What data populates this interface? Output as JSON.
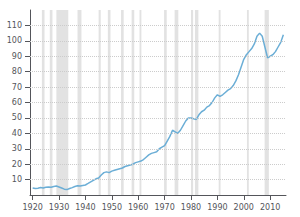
{
  "chart_data": {
    "type": "line",
    "x": [
      1920,
      1921,
      1922,
      1923,
      1924,
      1925,
      1926,
      1927,
      1928,
      1929,
      1930,
      1931,
      1932,
      1933,
      1934,
      1935,
      1936,
      1937,
      1938,
      1939,
      1940,
      1941,
      1942,
      1943,
      1944,
      1945,
      1946,
      1947,
      1948,
      1949,
      1950,
      1951,
      1952,
      1953,
      1954,
      1955,
      1956,
      1957,
      1958,
      1959,
      1960,
      1961,
      1962,
      1963,
      1964,
      1965,
      1966,
      1967,
      1968,
      1969,
      1970,
      1971,
      1972,
      1973,
      1974,
      1975,
      1976,
      1977,
      1978,
      1979,
      1980,
      1981,
      1982,
      1983,
      1984,
      1985,
      1986,
      1987,
      1988,
      1989,
      1990,
      1991,
      1992,
      1993,
      1994,
      1995,
      1996,
      1997,
      1998,
      1999,
      2000,
      2001,
      2002,
      2003,
      2004,
      2005,
      2006,
      2007,
      2008,
      2009,
      2010,
      2011,
      2012,
      2013,
      2014,
      2015
    ],
    "values": [
      4.5,
      4.2,
      4.4,
      4.8,
      4.6,
      5.0,
      5.2,
      5.0,
      5.5,
      5.8,
      5.2,
      4.5,
      3.8,
      3.5,
      4.2,
      4.8,
      5.5,
      6.0,
      5.8,
      6.2,
      6.5,
      7.5,
      8.5,
      9.5,
      10.5,
      11.0,
      13.0,
      14.5,
      15.0,
      14.5,
      15.5,
      16.0,
      16.5,
      17.0,
      17.5,
      18.5,
      19.0,
      19.5,
      20.0,
      21.0,
      21.5,
      22.0,
      23.0,
      24.5,
      26.0,
      27.0,
      27.5,
      28.0,
      30.0,
      31.0,
      32.0,
      35.0,
      38.0,
      42.0,
      41.0,
      40.0,
      42.0,
      45.0,
      48.0,
      50.0,
      50.0,
      49.5,
      49.0,
      52.0,
      54.0,
      55.0,
      57.0,
      58.0,
      60.0,
      63.0,
      65.0,
      64.0,
      65.0,
      66.5,
      68.0,
      69.0,
      71.0,
      74.0,
      78.0,
      83.0,
      88.0,
      91.0,
      93.0,
      95.0,
      98.0,
      103.0,
      105.0,
      103.0,
      96.0,
      89.0,
      90.0,
      91.0,
      93.0,
      96.0,
      99.0,
      104.0
    ],
    "color": "#6baed6",
    "bands": {
      "color": "#e2e2e2",
      "spans": [
        [
          1923.5,
          1924.5
        ],
        [
          1926.5,
          1927.5
        ],
        [
          1929.0,
          1933.5
        ],
        [
          1937.0,
          1938.5
        ],
        [
          1945.0,
          1945.8
        ],
        [
          1948.5,
          1949.5
        ],
        [
          1953.5,
          1954.5
        ],
        [
          1957.5,
          1958.5
        ],
        [
          1960.5,
          1961.2
        ],
        [
          1969.8,
          1970.8
        ],
        [
          1973.8,
          1975.2
        ],
        [
          1980.0,
          1980.8
        ],
        [
          1981.5,
          1982.8
        ],
        [
          1990.5,
          1991.2
        ],
        [
          2001.2,
          2001.9
        ],
        [
          2007.9,
          2009.5
        ]
      ]
    },
    "xlim": [
      1919,
      2016
    ],
    "ylim": [
      0,
      120
    ],
    "xticks": [
      1920,
      1930,
      1940,
      1950,
      1960,
      1970,
      1980,
      1990,
      2000,
      2010
    ],
    "yticks": [
      10,
      20,
      30,
      40,
      50,
      60,
      70,
      80,
      90,
      100,
      110
    ],
    "grid": true
  }
}
